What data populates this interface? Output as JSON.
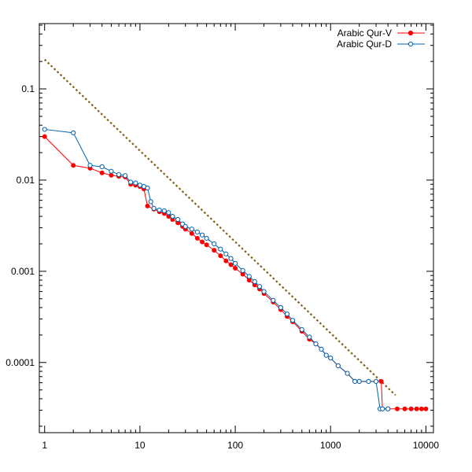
{
  "chart_data": {
    "type": "line",
    "x_scale": "log",
    "y_scale": "log",
    "xlim": [
      0.88,
      12000
    ],
    "ylim": [
      1.7e-05,
      0.52
    ],
    "grid": false,
    "legend_position": "top-right",
    "x_ticks": [
      {
        "value": 1,
        "label": "1"
      },
      {
        "value": 10,
        "label": "10"
      },
      {
        "value": 100,
        "label": "100"
      },
      {
        "value": 1000,
        "label": "1000"
      },
      {
        "value": 10000,
        "label": "10000"
      }
    ],
    "y_ticks": [
      {
        "value": 0.1,
        "label": "0.1"
      },
      {
        "value": 0.01,
        "label": "0.01"
      },
      {
        "value": 0.001,
        "label": "0.001"
      },
      {
        "value": 0.0001,
        "label": "0.0001"
      }
    ],
    "colors": {
      "qur_v": "#ff0000",
      "qur_d": "#0060ad",
      "reference": "#806010",
      "axis": "#000000"
    },
    "reference_line": {
      "x": [
        1,
        4800
      ],
      "y": [
        0.21,
        4.38e-05
      ]
    },
    "series": [
      {
        "name": "Arabic Qur-V",
        "marker": "filled-circle",
        "x": [
          1,
          2,
          3,
          4,
          5,
          6,
          7,
          8,
          9,
          10,
          11,
          12,
          14,
          16,
          18,
          20,
          22,
          25,
          28,
          30,
          35,
          40,
          45,
          50,
          60,
          70,
          80,
          90,
          100,
          120,
          140,
          160,
          180,
          200,
          250,
          300,
          350,
          400,
          500,
          600,
          700,
          800,
          900,
          1000,
          1200,
          1500,
          1800,
          2000,
          2500,
          3000,
          3400,
          3500,
          4000,
          5000,
          6000,
          7000,
          8000,
          9000,
          10000
        ],
        "y": [
          0.03,
          0.0145,
          0.0135,
          0.012,
          0.0113,
          0.011,
          0.0108,
          0.009,
          0.0088,
          0.0085,
          0.008,
          0.0052,
          0.0048,
          0.0045,
          0.0043,
          0.004,
          0.0037,
          0.0034,
          0.0031,
          0.0029,
          0.0026,
          0.0023,
          0.0021,
          0.00195,
          0.0017,
          0.00148,
          0.0013,
          0.00118,
          0.00108,
          0.00093,
          0.0008,
          0.00071,
          0.00064,
          0.00057,
          0.00046,
          0.00038,
          0.00032,
          0.00028,
          0.00022,
          0.00018,
          0.00016,
          0.00014,
          0.00012,
          0.000112,
          9.2e-05,
          7.6e-05,
          6.2e-05,
          6.2e-05,
          6.2e-05,
          6.2e-05,
          6.2e-05,
          3.1e-05,
          3.1e-05,
          3.1e-05,
          3.1e-05,
          3.1e-05,
          3.1e-05,
          3.1e-05,
          3.1e-05
        ]
      },
      {
        "name": "Arabic Qur-D",
        "marker": "open-circle",
        "x": [
          1,
          2,
          3,
          4,
          5,
          6,
          7,
          8,
          9,
          10,
          11,
          12,
          13,
          14,
          16,
          18,
          20,
          22,
          25,
          28,
          30,
          35,
          40,
          45,
          50,
          60,
          70,
          80,
          90,
          100,
          120,
          140,
          160,
          180,
          200,
          250,
          300,
          350,
          400,
          500,
          600,
          700,
          800,
          900,
          1000,
          1200,
          1500,
          1800,
          2000,
          2500,
          3000,
          3300,
          3500,
          4000
        ],
        "y": [
          0.036,
          0.033,
          0.0145,
          0.014,
          0.0125,
          0.0115,
          0.0112,
          0.0095,
          0.0093,
          0.0088,
          0.0085,
          0.0082,
          0.0058,
          0.0049,
          0.0047,
          0.0046,
          0.0044,
          0.004,
          0.0037,
          0.0033,
          0.0031,
          0.0029,
          0.0027,
          0.0025,
          0.0023,
          0.002,
          0.00175,
          0.00155,
          0.00138,
          0.00122,
          0.00102,
          0.00088,
          0.00077,
          0.00068,
          0.0006,
          0.00048,
          0.0004,
          0.00034,
          0.00029,
          0.00023,
          0.00019,
          0.00016,
          0.00014,
          0.00012,
          0.000112,
          9.2e-05,
          7.6e-05,
          6.2e-05,
          6.2e-05,
          6.2e-05,
          6.2e-05,
          3.1e-05,
          3.1e-05,
          3.1e-05
        ]
      }
    ]
  }
}
